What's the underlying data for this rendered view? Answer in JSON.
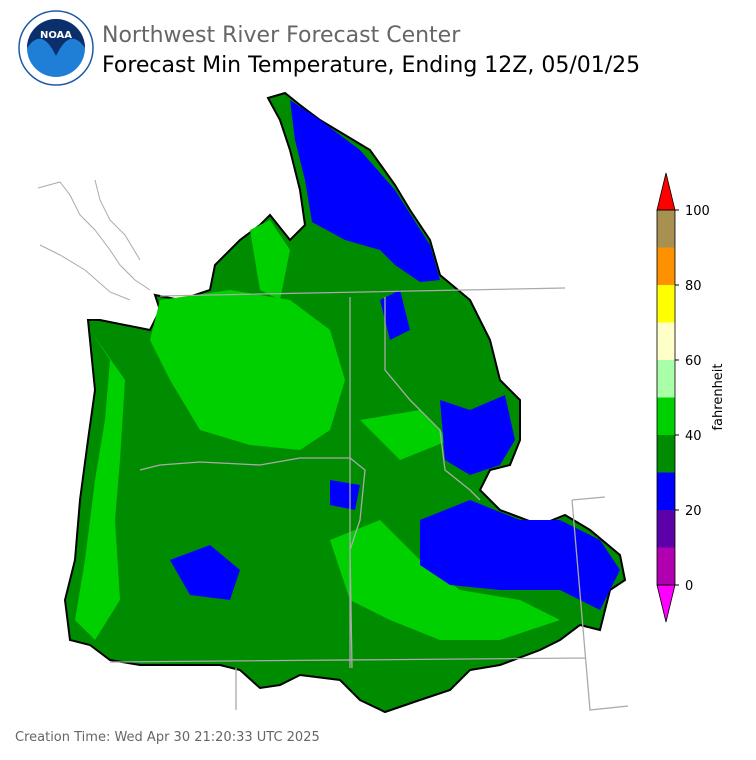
{
  "header": {
    "title": "Northwest River Forecast Center",
    "subtitle": "Forecast Min Temperature, Ending 12Z, 05/01/25",
    "logo_text": "NOAA"
  },
  "colorbar": {
    "label": "fahrenheit",
    "levels": [
      0,
      10,
      20,
      30,
      40,
      50,
      60,
      70,
      80,
      90,
      100
    ],
    "colors": [
      "#b000b0",
      "#5c00aa",
      "#0000ff",
      "#008c00",
      "#00d000",
      "#a8ffa8",
      "#ffffc8",
      "#ffff00",
      "#ff9000",
      "#a89050"
    ],
    "under_color": "#ff00ff",
    "over_color": "#ff0000",
    "ticks": [
      0,
      20,
      40,
      60,
      80,
      100
    ]
  },
  "footer": {
    "creation_time": "Creation Time: Wed Apr 30 21:20:33 UTC 2025"
  }
}
